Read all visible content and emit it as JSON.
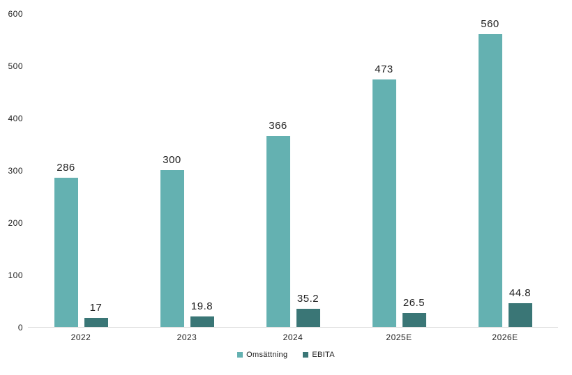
{
  "chart_data": {
    "type": "bar",
    "title": "",
    "categories": [
      "2022",
      "2023",
      "2024",
      "2025E",
      "2026E"
    ],
    "series": [
      {
        "name": "Omsättning",
        "color": "#64b1b1",
        "values": [
          286,
          300,
          366,
          473,
          560
        ],
        "labels": [
          "286",
          "300",
          "366",
          "473",
          "560"
        ]
      },
      {
        "name": "EBITA",
        "color": "#3a7676",
        "values": [
          17,
          19.8,
          35.2,
          26.5,
          44.8
        ],
        "labels": [
          "17",
          "19.8",
          "35.2",
          "26.5",
          "44.8"
        ]
      }
    ],
    "yticks": [
      0,
      100,
      200,
      300,
      400,
      500,
      600
    ],
    "ylim": [
      0,
      600
    ],
    "grid": false,
    "legend_position": "bottom-center",
    "axis_color": "#d9d9d9",
    "text_color": "#212121",
    "background_color": "#ffffff"
  }
}
